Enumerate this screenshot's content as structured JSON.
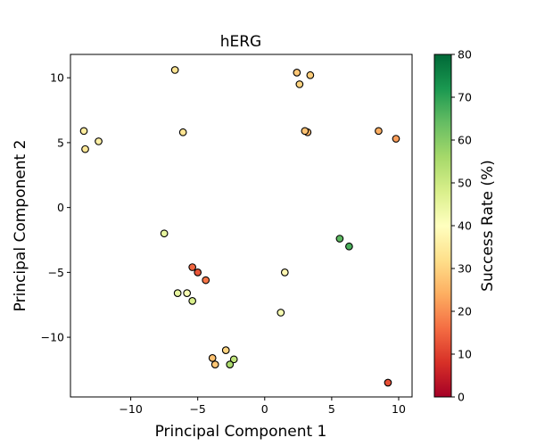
{
  "chart_data": {
    "type": "scatter",
    "title": "hERG",
    "xlabel": "Principal Component 1",
    "ylabel": "Principal Component 2",
    "xlim": [
      -14.5,
      11
    ],
    "ylim": [
      -14.6,
      11.8
    ],
    "xticks": [
      -10,
      -5,
      0,
      5,
      10
    ],
    "xtick_labels": [
      "−10",
      "−5",
      "0",
      "5",
      "10"
    ],
    "yticks": [
      -10,
      -5,
      0,
      5,
      10
    ],
    "ytick_labels": [
      "−10",
      "−5",
      "0",
      "5",
      "10"
    ],
    "grid": false,
    "colormap": "RdYlGn",
    "colorbar": {
      "label": "Success Rate (%)",
      "range": [
        0,
        80
      ],
      "ticks": [
        0,
        10,
        20,
        30,
        40,
        50,
        60,
        70,
        80
      ],
      "tick_labels": [
        "0",
        "10",
        "20",
        "30",
        "40",
        "50",
        "60",
        "70",
        "80"
      ]
    },
    "points": [
      {
        "x": -6.7,
        "y": 10.6,
        "value": 33
      },
      {
        "x": 2.4,
        "y": 10.4,
        "value": 28
      },
      {
        "x": 3.4,
        "y": 10.2,
        "value": 29
      },
      {
        "x": 2.6,
        "y": 9.5,
        "value": 30
      },
      {
        "x": -13.5,
        "y": 5.9,
        "value": 35
      },
      {
        "x": -12.4,
        "y": 5.1,
        "value": 36
      },
      {
        "x": -13.4,
        "y": 4.5,
        "value": 34
      },
      {
        "x": -6.1,
        "y": 5.8,
        "value": 33
      },
      {
        "x": 3.2,
        "y": 5.8,
        "value": 25
      },
      {
        "x": 3.0,
        "y": 5.9,
        "value": 27
      },
      {
        "x": 8.5,
        "y": 5.9,
        "value": 24
      },
      {
        "x": 9.8,
        "y": 5.3,
        "value": 22
      },
      {
        "x": -7.5,
        "y": -2.0,
        "value": 45
      },
      {
        "x": 5.6,
        "y": -2.4,
        "value": 65
      },
      {
        "x": 6.3,
        "y": -3.0,
        "value": 67
      },
      {
        "x": -5.4,
        "y": -4.6,
        "value": 15
      },
      {
        "x": -5.0,
        "y": -5.0,
        "value": 13
      },
      {
        "x": -4.4,
        "y": -5.6,
        "value": 17
      },
      {
        "x": 1.5,
        "y": -5.0,
        "value": 38
      },
      {
        "x": -6.5,
        "y": -6.6,
        "value": 45
      },
      {
        "x": -5.8,
        "y": -6.6,
        "value": 42
      },
      {
        "x": -5.4,
        "y": -7.2,
        "value": 48
      },
      {
        "x": 1.2,
        "y": -8.1,
        "value": 42
      },
      {
        "x": -2.9,
        "y": -11.0,
        "value": 30
      },
      {
        "x": -3.9,
        "y": -11.6,
        "value": 27
      },
      {
        "x": -3.7,
        "y": -12.1,
        "value": 28
      },
      {
        "x": -2.3,
        "y": -11.7,
        "value": 52
      },
      {
        "x": -2.6,
        "y": -12.1,
        "value": 55
      },
      {
        "x": 9.2,
        "y": -13.5,
        "value": 12
      }
    ]
  }
}
